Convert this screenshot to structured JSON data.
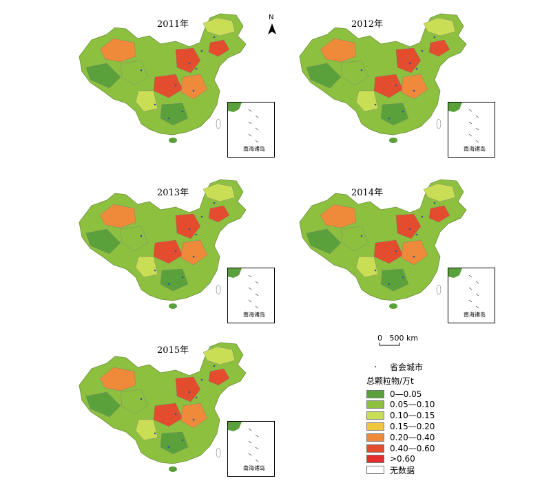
{
  "panels": [
    {
      "year": "2011年"
    },
    {
      "year": "2012年"
    },
    {
      "year": "2013年"
    },
    {
      "year": "2014年"
    },
    {
      "year": "2015年"
    }
  ],
  "inset_label": "南海诸岛",
  "north_label": "N",
  "scale_label": "0   500 km",
  "legend": {
    "capital_label": "省会城市",
    "title": "总颗粒物/万t",
    "items": [
      {
        "label": "0—0.05",
        "color": "#5aa13b"
      },
      {
        "label": "0.05—0.10",
        "color": "#8dc03f"
      },
      {
        "label": "0.10—0.15",
        "color": "#c9de55"
      },
      {
        "label": "0.15—0.20",
        "color": "#f2c63a"
      },
      {
        "label": "0.20—0.40",
        "color": "#ee8a3a"
      },
      {
        "label": "0.40—0.60",
        "color": "#e34c2c"
      },
      {
        "label": ">0.60",
        "color": "#e62b2b"
      },
      {
        "label": "无数据",
        "color": "#ffffff"
      }
    ]
  },
  "colors": {
    "land_green": "#8dc03f",
    "land_dark": "#5aa13b",
    "yellow": "#c9de55",
    "orange": "#ee8a3a",
    "red": "#e34c2c"
  }
}
